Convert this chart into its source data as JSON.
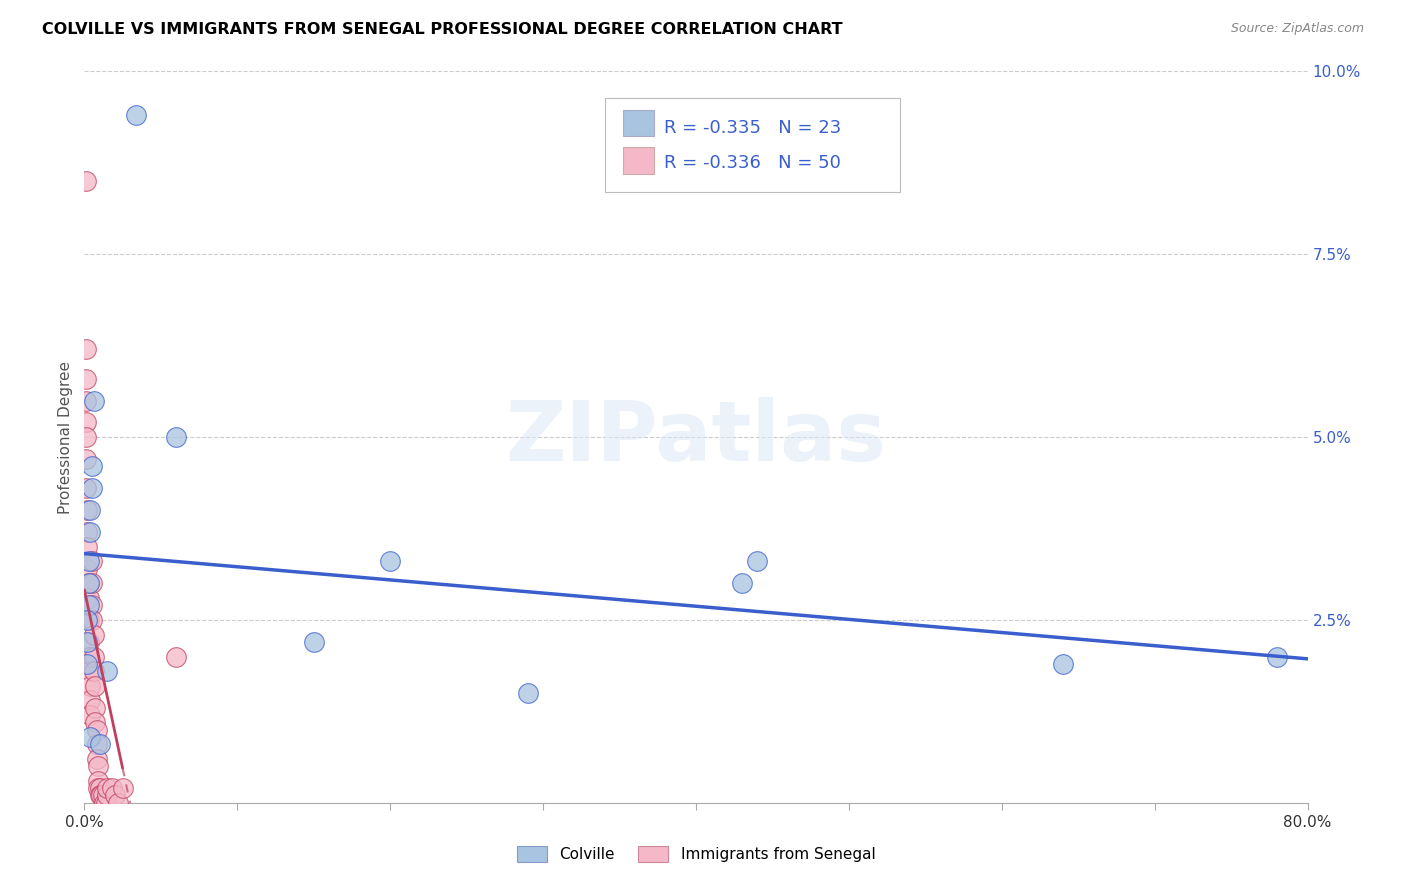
{
  "title": "COLVILLE VS IMMIGRANTS FROM SENEGAL PROFESSIONAL DEGREE CORRELATION CHART",
  "source": "Source: ZipAtlas.com",
  "xlabel_colville": "Colville",
  "xlabel_senegal": "Immigrants from Senegal",
  "ylabel": "Professional Degree",
  "xlim": [
    0,
    0.8
  ],
  "ylim": [
    0,
    0.1
  ],
  "colville_color": "#a8c4e0",
  "senegal_color": "#f4b8c8",
  "trendline_colville_color": "#3a5fcd",
  "trendline_senegal_color": "#c04060",
  "legend_text_color": "#3a5fcd",
  "legend_R_colville": "R = -0.335",
  "legend_N_colville": "N = 23",
  "legend_R_senegal": "R = -0.336",
  "legend_N_senegal": "N = 50",
  "watermark": "ZIPatlas",
  "colville_x": [
    0.034,
    0.006,
    0.005,
    0.005,
    0.004,
    0.004,
    0.003,
    0.003,
    0.003,
    0.002,
    0.002,
    0.002,
    0.015,
    0.06,
    0.2,
    0.15,
    0.29,
    0.43,
    0.44,
    0.64,
    0.78,
    0.004,
    0.01
  ],
  "colville_y": [
    0.094,
    0.055,
    0.046,
    0.043,
    0.04,
    0.037,
    0.033,
    0.03,
    0.027,
    0.025,
    0.022,
    0.019,
    0.018,
    0.05,
    0.033,
    0.022,
    0.015,
    0.03,
    0.033,
    0.019,
    0.02,
    0.009,
    0.008
  ],
  "senegal_x": [
    0.001,
    0.001,
    0.001,
    0.001,
    0.001,
    0.001,
    0.001,
    0.001,
    0.002,
    0.002,
    0.002,
    0.002,
    0.003,
    0.003,
    0.003,
    0.003,
    0.003,
    0.004,
    0.004,
    0.004,
    0.004,
    0.005,
    0.005,
    0.005,
    0.005,
    0.006,
    0.006,
    0.006,
    0.007,
    0.007,
    0.007,
    0.008,
    0.008,
    0.008,
    0.009,
    0.009,
    0.009,
    0.01,
    0.01,
    0.011,
    0.012,
    0.013,
    0.014,
    0.015,
    0.015,
    0.018,
    0.02,
    0.022,
    0.025,
    0.06
  ],
  "senegal_y": [
    0.085,
    0.062,
    0.058,
    0.055,
    0.052,
    0.05,
    0.047,
    0.043,
    0.04,
    0.037,
    0.035,
    0.032,
    0.03,
    0.028,
    0.025,
    0.022,
    0.02,
    0.018,
    0.016,
    0.014,
    0.012,
    0.033,
    0.03,
    0.027,
    0.025,
    0.023,
    0.02,
    0.018,
    0.016,
    0.013,
    0.011,
    0.01,
    0.008,
    0.006,
    0.005,
    0.003,
    0.002,
    0.002,
    0.001,
    0.001,
    0.001,
    0.0,
    0.0,
    0.001,
    0.002,
    0.002,
    0.001,
    0.0,
    0.002,
    0.02
  ]
}
